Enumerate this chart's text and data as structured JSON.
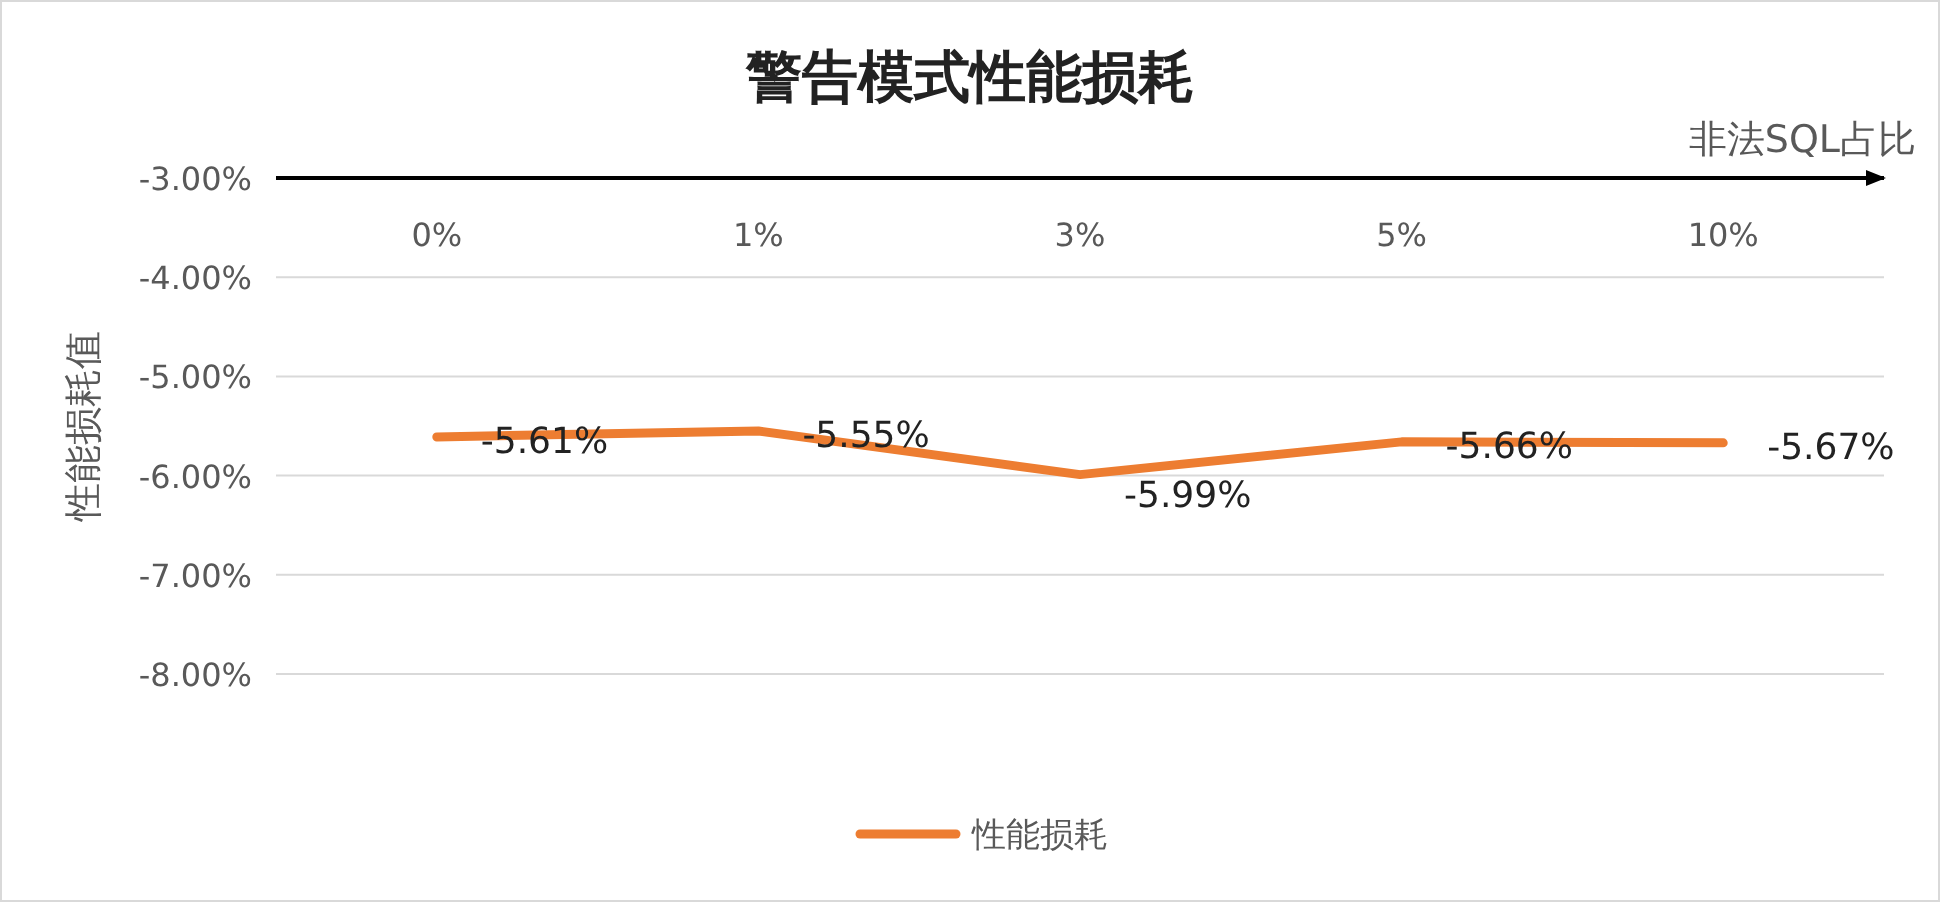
{
  "chart_data": {
    "type": "line",
    "title": "警告模式性能损耗",
    "xlabel": "非法SQL占比",
    "ylabel": "性能损耗值",
    "categories": [
      "0%",
      "1%",
      "3%",
      "5%",
      "10%"
    ],
    "series": [
      {
        "name": "性能损耗",
        "color": "#ed7d31",
        "values": [
          -5.61,
          -5.55,
          -5.99,
          -5.66,
          -5.67
        ],
        "value_labels": [
          "-5.61%",
          "-5.55%",
          "-5.99%",
          "-5.66%",
          "-5.67%"
        ]
      }
    ],
    "ylim": [
      -8,
      -3
    ],
    "yticks": [
      {
        "value": -3,
        "label": "-3.00%"
      },
      {
        "value": -4,
        "label": "-4.00%"
      },
      {
        "value": -5,
        "label": "-5.00%"
      },
      {
        "value": -6,
        "label": "-6.00%"
      },
      {
        "value": -7,
        "label": "-7.00%"
      },
      {
        "value": -8,
        "label": "-8.00%"
      }
    ],
    "grid": "y",
    "legend": "bottom",
    "marker": "none",
    "line_style": "solid"
  }
}
